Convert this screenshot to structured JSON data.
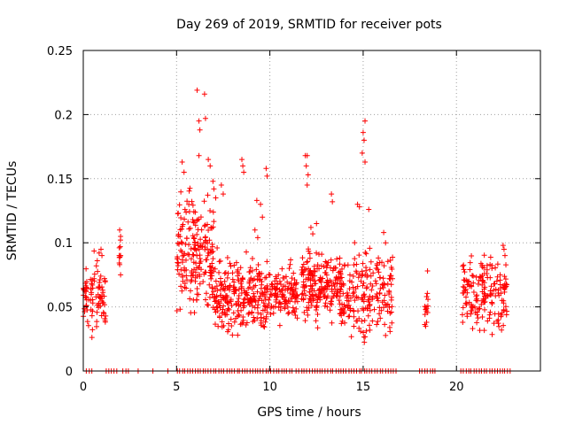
{
  "chart_data": {
    "type": "scatter",
    "title": "Day 269 of 2019, SRMTID for receiver pots",
    "xlabel": "GPS time / hours",
    "ylabel": "SRMTID / TECUs",
    "xlim": [
      0,
      24.5
    ],
    "ylim": [
      0,
      0.25
    ],
    "xticks": [
      0,
      5,
      10,
      15,
      20
    ],
    "yticks": [
      0,
      0.05,
      0.1,
      0.15,
      0.2,
      0.25
    ],
    "grid": true,
    "marker": "plus",
    "series_color": "#ff0000",
    "clusters": [
      {
        "x": [
          0.0,
          1.2
        ],
        "y": [
          0.015,
          0.095
        ],
        "n": 90
      },
      {
        "x": [
          1.9,
          2.0
        ],
        "y": [
          0.07,
          0.11
        ],
        "n": 8
      },
      {
        "x": [
          5.0,
          7.0
        ],
        "y": [
          0.03,
          0.16
        ],
        "n": 200
      },
      {
        "x": [
          7.0,
          10.0
        ],
        "y": [
          0.02,
          0.1
        ],
        "n": 260
      },
      {
        "x": [
          10.0,
          11.5
        ],
        "y": [
          0.03,
          0.09
        ],
        "n": 120
      },
      {
        "x": [
          11.7,
          13.8
        ],
        "y": [
          0.03,
          0.1
        ],
        "n": 200
      },
      {
        "x": [
          13.8,
          16.6
        ],
        "y": [
          0.01,
          0.11
        ],
        "n": 200
      },
      {
        "x": [
          18.3,
          18.5
        ],
        "y": [
          0.03,
          0.07
        ],
        "n": 10
      },
      {
        "x": [
          20.3,
          22.7
        ],
        "y": [
          0.02,
          0.1
        ],
        "n": 170
      }
    ],
    "points": [
      [
        6.1,
        0.219
      ],
      [
        6.5,
        0.216
      ],
      [
        6.2,
        0.195
      ],
      [
        6.25,
        0.188
      ],
      [
        6.55,
        0.197
      ],
      [
        15.1,
        0.195
      ],
      [
        15.0,
        0.186
      ],
      [
        15.05,
        0.18
      ],
      [
        14.95,
        0.17
      ],
      [
        15.1,
        0.163
      ],
      [
        5.3,
        0.163
      ],
      [
        5.4,
        0.155
      ],
      [
        6.7,
        0.165
      ],
      [
        6.8,
        0.16
      ],
      [
        6.2,
        0.168
      ],
      [
        8.5,
        0.165
      ],
      [
        8.55,
        0.16
      ],
      [
        8.6,
        0.155
      ],
      [
        9.8,
        0.158
      ],
      [
        9.85,
        0.152
      ],
      [
        11.9,
        0.168
      ],
      [
        12.0,
        0.168
      ],
      [
        11.95,
        0.16
      ],
      [
        12.05,
        0.153
      ],
      [
        12.0,
        0.145
      ],
      [
        13.3,
        0.138
      ],
      [
        13.35,
        0.132
      ],
      [
        14.7,
        0.13
      ],
      [
        14.8,
        0.128
      ],
      [
        15.3,
        0.126
      ],
      [
        6.95,
        0.148
      ],
      [
        7.0,
        0.142
      ],
      [
        7.1,
        0.135
      ],
      [
        7.4,
        0.145
      ],
      [
        7.5,
        0.138
      ],
      [
        9.3,
        0.133
      ],
      [
        9.5,
        0.13
      ],
      [
        9.6,
        0.12
      ],
      [
        9.2,
        0.11
      ],
      [
        9.35,
        0.104
      ],
      [
        12.2,
        0.112
      ],
      [
        12.3,
        0.107
      ],
      [
        12.5,
        0.115
      ],
      [
        16.1,
        0.108
      ],
      [
        16.2,
        0.1
      ],
      [
        0.7,
        0.082
      ],
      [
        0.75,
        0.086
      ],
      [
        0.85,
        0.092
      ],
      [
        0.95,
        0.095
      ],
      [
        1.0,
        0.09
      ],
      [
        1.95,
        0.11
      ],
      [
        2.0,
        0.105
      ],
      [
        2.0,
        0.09
      ],
      [
        1.95,
        0.083
      ],
      [
        2.0,
        0.075
      ],
      [
        18.45,
        0.078
      ],
      [
        18.4,
        0.058
      ],
      [
        18.35,
        0.048
      ],
      [
        18.4,
        0.038
      ],
      [
        18.35,
        0.035
      ],
      [
        22.5,
        0.098
      ],
      [
        22.55,
        0.095
      ],
      [
        22.6,
        0.09
      ],
      [
        21.8,
        0.083
      ],
      [
        21.9,
        0.08
      ]
    ],
    "zero_marks": [
      [
        0.15,
        0.5
      ],
      [
        1.2,
        1.9
      ],
      [
        2.1,
        2.4
      ],
      [
        2.9,
        3.0
      ],
      [
        3.7,
        3.8
      ],
      [
        4.5,
        4.6
      ],
      [
        5.0,
        11.2
      ],
      [
        11.4,
        16.8
      ],
      [
        18.0,
        18.9
      ],
      [
        20.2,
        22.9
      ]
    ]
  }
}
